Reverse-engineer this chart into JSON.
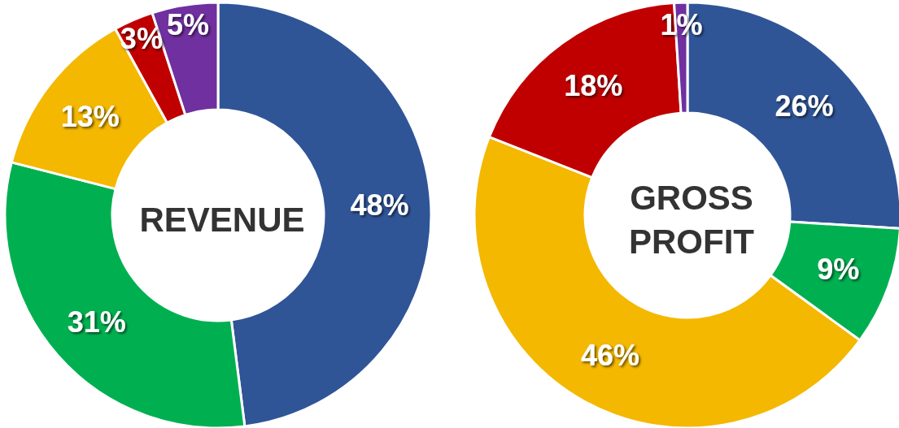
{
  "chart_data": [
    {
      "type": "donut",
      "title": "REVENUE",
      "categories": [
        null,
        null,
        null,
        null,
        null
      ],
      "values": [
        48,
        31,
        13,
        3,
        5
      ],
      "colors": [
        "#2f5597",
        "#00b050",
        "#f4b800",
        "#c00000",
        "#7030a0"
      ],
      "value_labels": [
        "48%",
        "31%",
        "13%",
        "3%",
        "5%"
      ]
    },
    {
      "type": "donut",
      "title": "GROSS\nPROFIT",
      "categories": [
        null,
        null,
        null,
        null,
        null
      ],
      "values": [
        26,
        9,
        46,
        18,
        1
      ],
      "colors": [
        "#2f5597",
        "#00b050",
        "#f4b800",
        "#c00000",
        "#7030a0"
      ],
      "value_labels": [
        "26%",
        "9%",
        "46%",
        "18%",
        "1%"
      ]
    }
  ]
}
